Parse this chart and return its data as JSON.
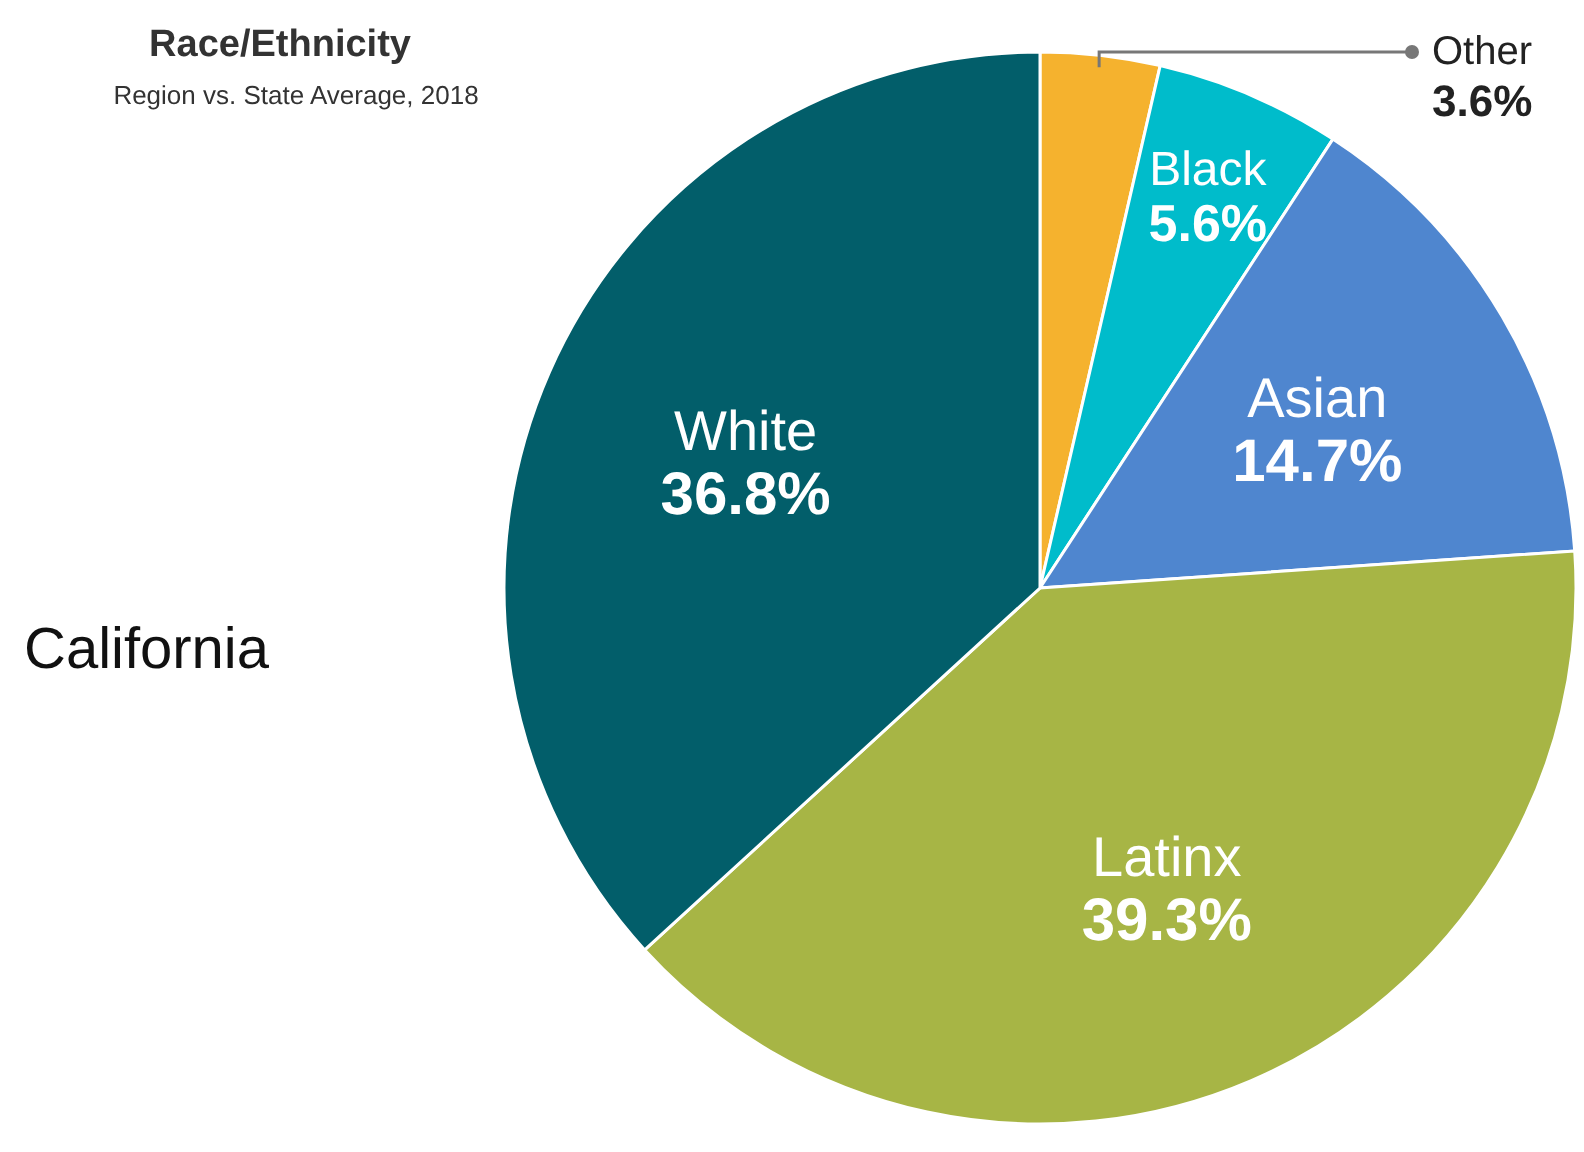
{
  "chart_data": {
    "type": "pie",
    "title": "Race/Ethnicity",
    "subtitle": "Region vs. State Average, 2018",
    "annotations": [
      "California"
    ],
    "categories": [
      "Other",
      "Black",
      "Asian",
      "Latinx",
      "White"
    ],
    "values": [
      3.6,
      5.6,
      14.7,
      39.3,
      36.8
    ],
    "value_labels": [
      "3.6%",
      "5.6%",
      "14.7%",
      "39.3%",
      "36.8%"
    ],
    "colors": [
      "#f5b22e",
      "#00bccb",
      "#4f86cf",
      "#a7b545",
      "#025e6a"
    ],
    "legend": false
  }
}
